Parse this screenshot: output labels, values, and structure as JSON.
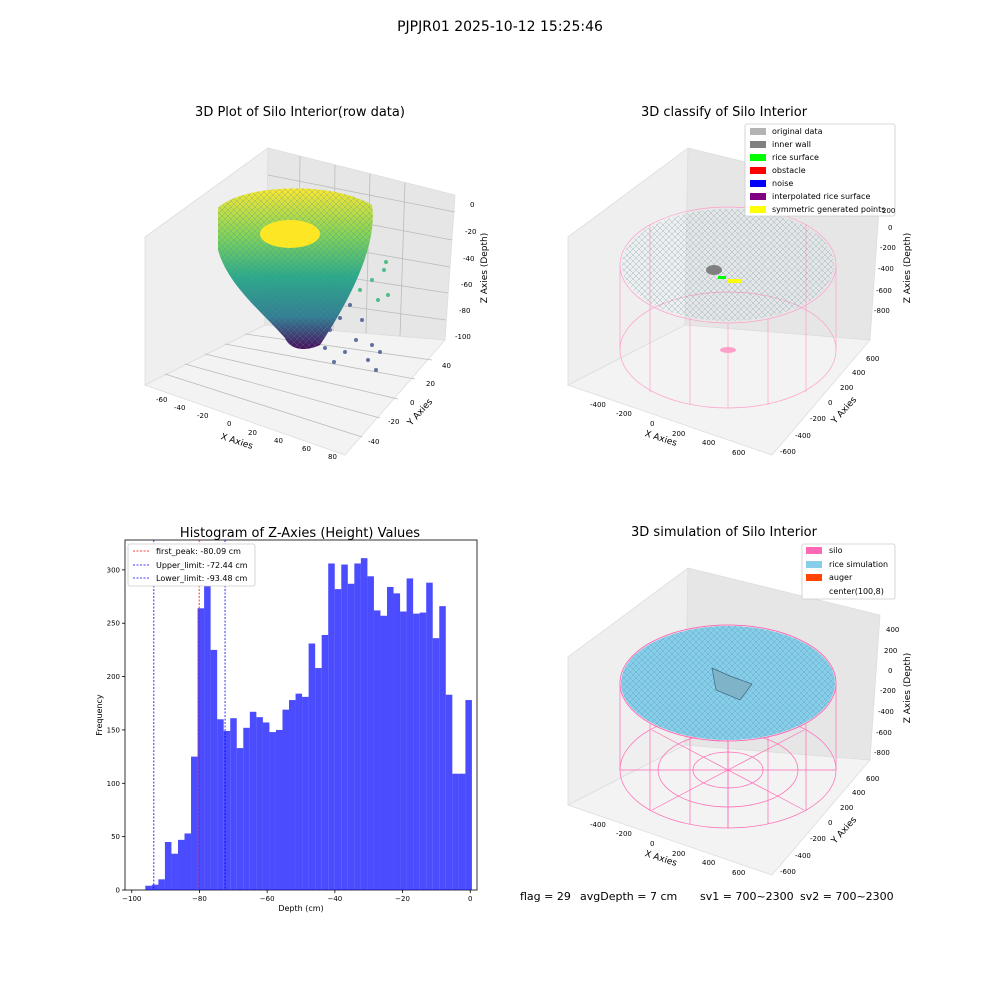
{
  "suptitle": "PJPJR01 2025-10-12 15:25:46",
  "panels": {
    "raw": {
      "title": "3D Plot of Silo Interior(row data)",
      "xlabel": "X Axies",
      "ylabel": "Y Axies",
      "zlabel": "Z Axies (Depth)",
      "x_ticks": [
        "-60",
        "-40",
        "-20",
        "0",
        "20",
        "40",
        "60",
        "80"
      ],
      "y_ticks": [
        "-40",
        "-20",
        "0",
        "20",
        "40"
      ],
      "z_ticks": [
        "0",
        "-20",
        "-40",
        "-60",
        "-80",
        "-100"
      ]
    },
    "classify": {
      "title": "3D classify of Silo Interior",
      "xlabel": "X Axies",
      "ylabel": "Y Axies",
      "zlabel": "Z Axies (Depth)",
      "x_ticks": [
        "-400",
        "-200",
        "0",
        "200",
        "400",
        "600"
      ],
      "y_ticks": [
        "-600",
        "-400",
        "-200",
        "0",
        "200",
        "400",
        "600"
      ],
      "z_ticks": [
        "200",
        "0",
        "-200",
        "-400",
        "-600",
        "-800"
      ],
      "legend": [
        {
          "label": "original data",
          "color": "#b3b3b3"
        },
        {
          "label": "inner wall",
          "color": "#808080"
        },
        {
          "label": "rice surface",
          "color": "#00ff00"
        },
        {
          "label": "obstacle",
          "color": "#ff0000"
        },
        {
          "label": "noise",
          "color": "#0000ff"
        },
        {
          "label": "interpolated rice surface",
          "color": "#800080"
        },
        {
          "label": "symmetric generated points",
          "color": "#ffff00"
        }
      ]
    },
    "simulation": {
      "title": "3D simulation of Silo Interior",
      "xlabel": "X Axies",
      "ylabel": "Y Axies",
      "zlabel": "Z Axies (Depth)",
      "x_ticks": [
        "-400",
        "-200",
        "0",
        "200",
        "400",
        "600"
      ],
      "y_ticks": [
        "-600",
        "-400",
        "-200",
        "0",
        "200",
        "400",
        "600"
      ],
      "z_ticks": [
        "400",
        "200",
        "0",
        "-200",
        "-400",
        "-600",
        "-800"
      ],
      "legend": [
        {
          "label": "silo",
          "color": "#ff69b4"
        },
        {
          "label": "rice simulation",
          "color": "#87ceeb"
        },
        {
          "label": "auger",
          "color": "#ff4500"
        },
        {
          "label": "center(100,8)",
          "color": ""
        }
      ]
    }
  },
  "footer": {
    "flag": "flag = 29",
    "avg_depth": "avgDepth = 7 cm",
    "sv1": "sv1 = 700~2300",
    "sv2": "sv2 = 700~2300"
  },
  "chart_data": {
    "type": "bar",
    "title": "Histogram of Z-Axies (Height) Values",
    "xlabel": "Depth (cm)",
    "ylabel": "Frequency",
    "xlim": [
      -102,
      2
    ],
    "ylim": [
      0,
      328
    ],
    "x_ticks": [
      -100,
      -80,
      -60,
      -40,
      -20,
      0
    ],
    "y_ticks": [
      0,
      50,
      100,
      150,
      200,
      250,
      300
    ],
    "bin_start": -96,
    "bin_width": 1.93,
    "values": [
      4,
      5,
      10,
      45,
      34,
      47,
      53,
      125,
      264,
      287,
      225,
      160,
      149,
      161,
      133,
      152,
      167,
      162,
      157,
      148,
      150,
      169,
      178,
      184,
      181,
      231,
      208,
      239,
      306,
      282,
      305,
      287,
      306,
      311,
      294,
      262,
      257,
      284,
      278,
      261,
      292,
      259,
      260,
      288,
      236,
      266,
      183,
      109,
      109,
      178
    ],
    "bar_color": "#0000ff",
    "lines": [
      {
        "label": "first_peak: -80.09 cm",
        "x": -80.09,
        "color": "#ff0000"
      },
      {
        "label": "Upper_limit: -72.44 cm",
        "x": -72.44,
        "color": "#0000ff"
      },
      {
        "label": "Lower_limit: -93.48 cm",
        "x": -93.48,
        "color": "#0000ff"
      }
    ],
    "legend_position": "upper-left"
  }
}
